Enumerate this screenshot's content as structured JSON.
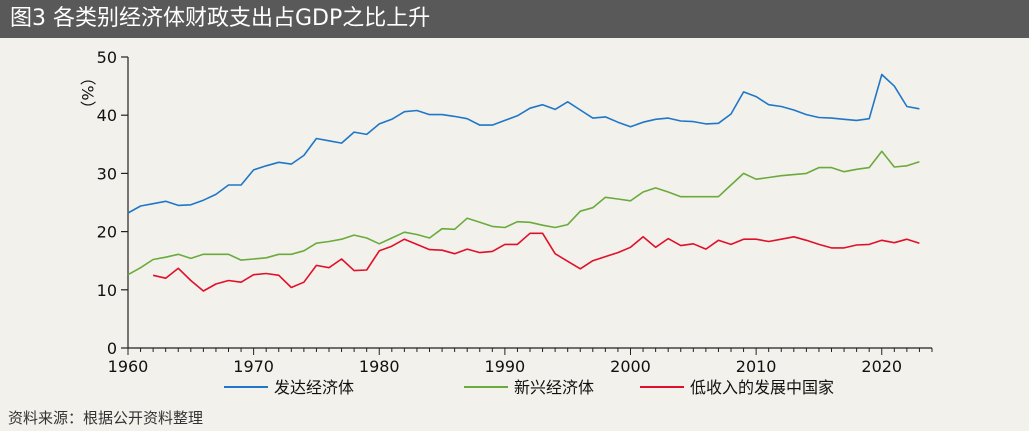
{
  "header": {
    "title": "图3 各类别经济体财政支出占GDP之比上升"
  },
  "source": "资料来源：根据公开资料整理",
  "chart_data": {
    "type": "line",
    "title": "图3 各类别经济体财政支出占GDP之比上升",
    "xlabel": "",
    "ylabel": "（%）",
    "xlim": [
      1960,
      2024
    ],
    "ylim": [
      0,
      50
    ],
    "x_ticks": [
      1960,
      1970,
      1980,
      1990,
      2000,
      2010,
      2020
    ],
    "y_ticks": [
      0,
      10,
      20,
      30,
      40,
      50
    ],
    "legend_position": "bottom",
    "series": [
      {
        "name": "发达经济体",
        "color": "#1f77c8",
        "x": [
          1960,
          1961,
          1962,
          1963,
          1964,
          1965,
          1966,
          1967,
          1968,
          1969,
          1970,
          1971,
          1972,
          1973,
          1974,
          1975,
          1976,
          1977,
          1978,
          1979,
          1980,
          1981,
          1982,
          1983,
          1984,
          1985,
          1986,
          1987,
          1988,
          1989,
          1990,
          1991,
          1992,
          1993,
          1994,
          1995,
          1996,
          1997,
          1998,
          1999,
          2000,
          2001,
          2002,
          2003,
          2004,
          2005,
          2006,
          2007,
          2008,
          2009,
          2010,
          2011,
          2012,
          2013,
          2014,
          2015,
          2016,
          2017,
          2018,
          2019,
          2020,
          2021,
          2022,
          2023
        ],
        "values": [
          23.2,
          24.4,
          24.8,
          25.2,
          24.5,
          24.6,
          25.4,
          26.4,
          28.0,
          28.0,
          30.6,
          31.3,
          31.9,
          31.6,
          33.1,
          36.0,
          35.6,
          35.2,
          37.1,
          36.7,
          38.5,
          39.3,
          40.6,
          40.8,
          40.1,
          40.1,
          39.8,
          39.4,
          38.3,
          38.3,
          39.1,
          39.9,
          41.2,
          41.8,
          41.0,
          42.3,
          40.9,
          39.5,
          39.7,
          38.8,
          38.0,
          38.8,
          39.3,
          39.5,
          39.0,
          38.9,
          38.5,
          38.6,
          40.2,
          44.0,
          43.2,
          41.8,
          41.5,
          40.9,
          40.1,
          39.6,
          39.5,
          39.3,
          39.1,
          39.4,
          47.0,
          45.0,
          41.5,
          41.1
        ]
      },
      {
        "name": "新兴经济体",
        "color": "#6aab3c",
        "x": [
          1960,
          1961,
          1962,
          1963,
          1964,
          1965,
          1966,
          1967,
          1968,
          1969,
          1970,
          1971,
          1972,
          1973,
          1974,
          1975,
          1976,
          1977,
          1978,
          1979,
          1980,
          1981,
          1982,
          1983,
          1984,
          1985,
          1986,
          1987,
          1988,
          1989,
          1990,
          1991,
          1992,
          1993,
          1994,
          1995,
          1996,
          1997,
          1998,
          1999,
          2000,
          2001,
          2002,
          2003,
          2004,
          2005,
          2006,
          2007,
          2008,
          2009,
          2010,
          2011,
          2012,
          2013,
          2014,
          2015,
          2016,
          2017,
          2018,
          2019,
          2020,
          2021,
          2022,
          2023
        ],
        "values": [
          12.6,
          13.8,
          15.2,
          15.6,
          16.1,
          15.4,
          16.1,
          16.1,
          16.1,
          15.1,
          15.3,
          15.5,
          16.1,
          16.1,
          16.7,
          18.0,
          18.3,
          18.7,
          19.4,
          18.9,
          17.9,
          18.9,
          19.9,
          19.5,
          18.9,
          20.5,
          20.4,
          22.3,
          21.6,
          20.9,
          20.7,
          21.7,
          21.6,
          21.1,
          20.7,
          21.2,
          23.5,
          24.1,
          25.9,
          25.6,
          25.3,
          26.8,
          27.5,
          26.8,
          26.0,
          26.0,
          26.0,
          26.0,
          28.0,
          30.0,
          29.0,
          29.3,
          29.6,
          29.8,
          30.0,
          31.0,
          31.0,
          30.3,
          30.7,
          31.0,
          33.8,
          31.1,
          31.3,
          32.0
        ]
      },
      {
        "name": "低收入的发展中国家",
        "color": "#e0102a",
        "x": [
          1962,
          1963,
          1964,
          1965,
          1966,
          1967,
          1968,
          1969,
          1970,
          1971,
          1972,
          1973,
          1974,
          1975,
          1976,
          1977,
          1978,
          1979,
          1980,
          1981,
          1982,
          1983,
          1984,
          1985,
          1986,
          1987,
          1988,
          1989,
          1990,
          1991,
          1992,
          1993,
          1994,
          1995,
          1996,
          1997,
          1998,
          1999,
          2000,
          2001,
          2002,
          2003,
          2004,
          2005,
          2006,
          2007,
          2008,
          2009,
          2010,
          2011,
          2012,
          2013,
          2014,
          2015,
          2016,
          2017,
          2018,
          2019,
          2020,
          2021,
          2022,
          2023
        ],
        "values": [
          12.5,
          12.0,
          13.7,
          11.6,
          9.8,
          11.0,
          11.6,
          11.3,
          12.6,
          12.8,
          12.5,
          10.4,
          11.3,
          14.2,
          13.8,
          15.3,
          13.3,
          13.4,
          16.7,
          17.5,
          18.7,
          17.8,
          16.9,
          16.8,
          16.2,
          17.0,
          16.4,
          16.6,
          17.8,
          17.8,
          19.7,
          19.7,
          16.2,
          14.9,
          13.6,
          15.0,
          15.7,
          16.4,
          17.3,
          19.1,
          17.3,
          18.8,
          17.6,
          17.9,
          17.0,
          18.5,
          17.8,
          18.7,
          18.7,
          18.3,
          18.7,
          19.1,
          18.5,
          17.8,
          17.2,
          17.2,
          17.7,
          17.8,
          18.5,
          18.1,
          18.7,
          18.0
        ]
      }
    ]
  }
}
